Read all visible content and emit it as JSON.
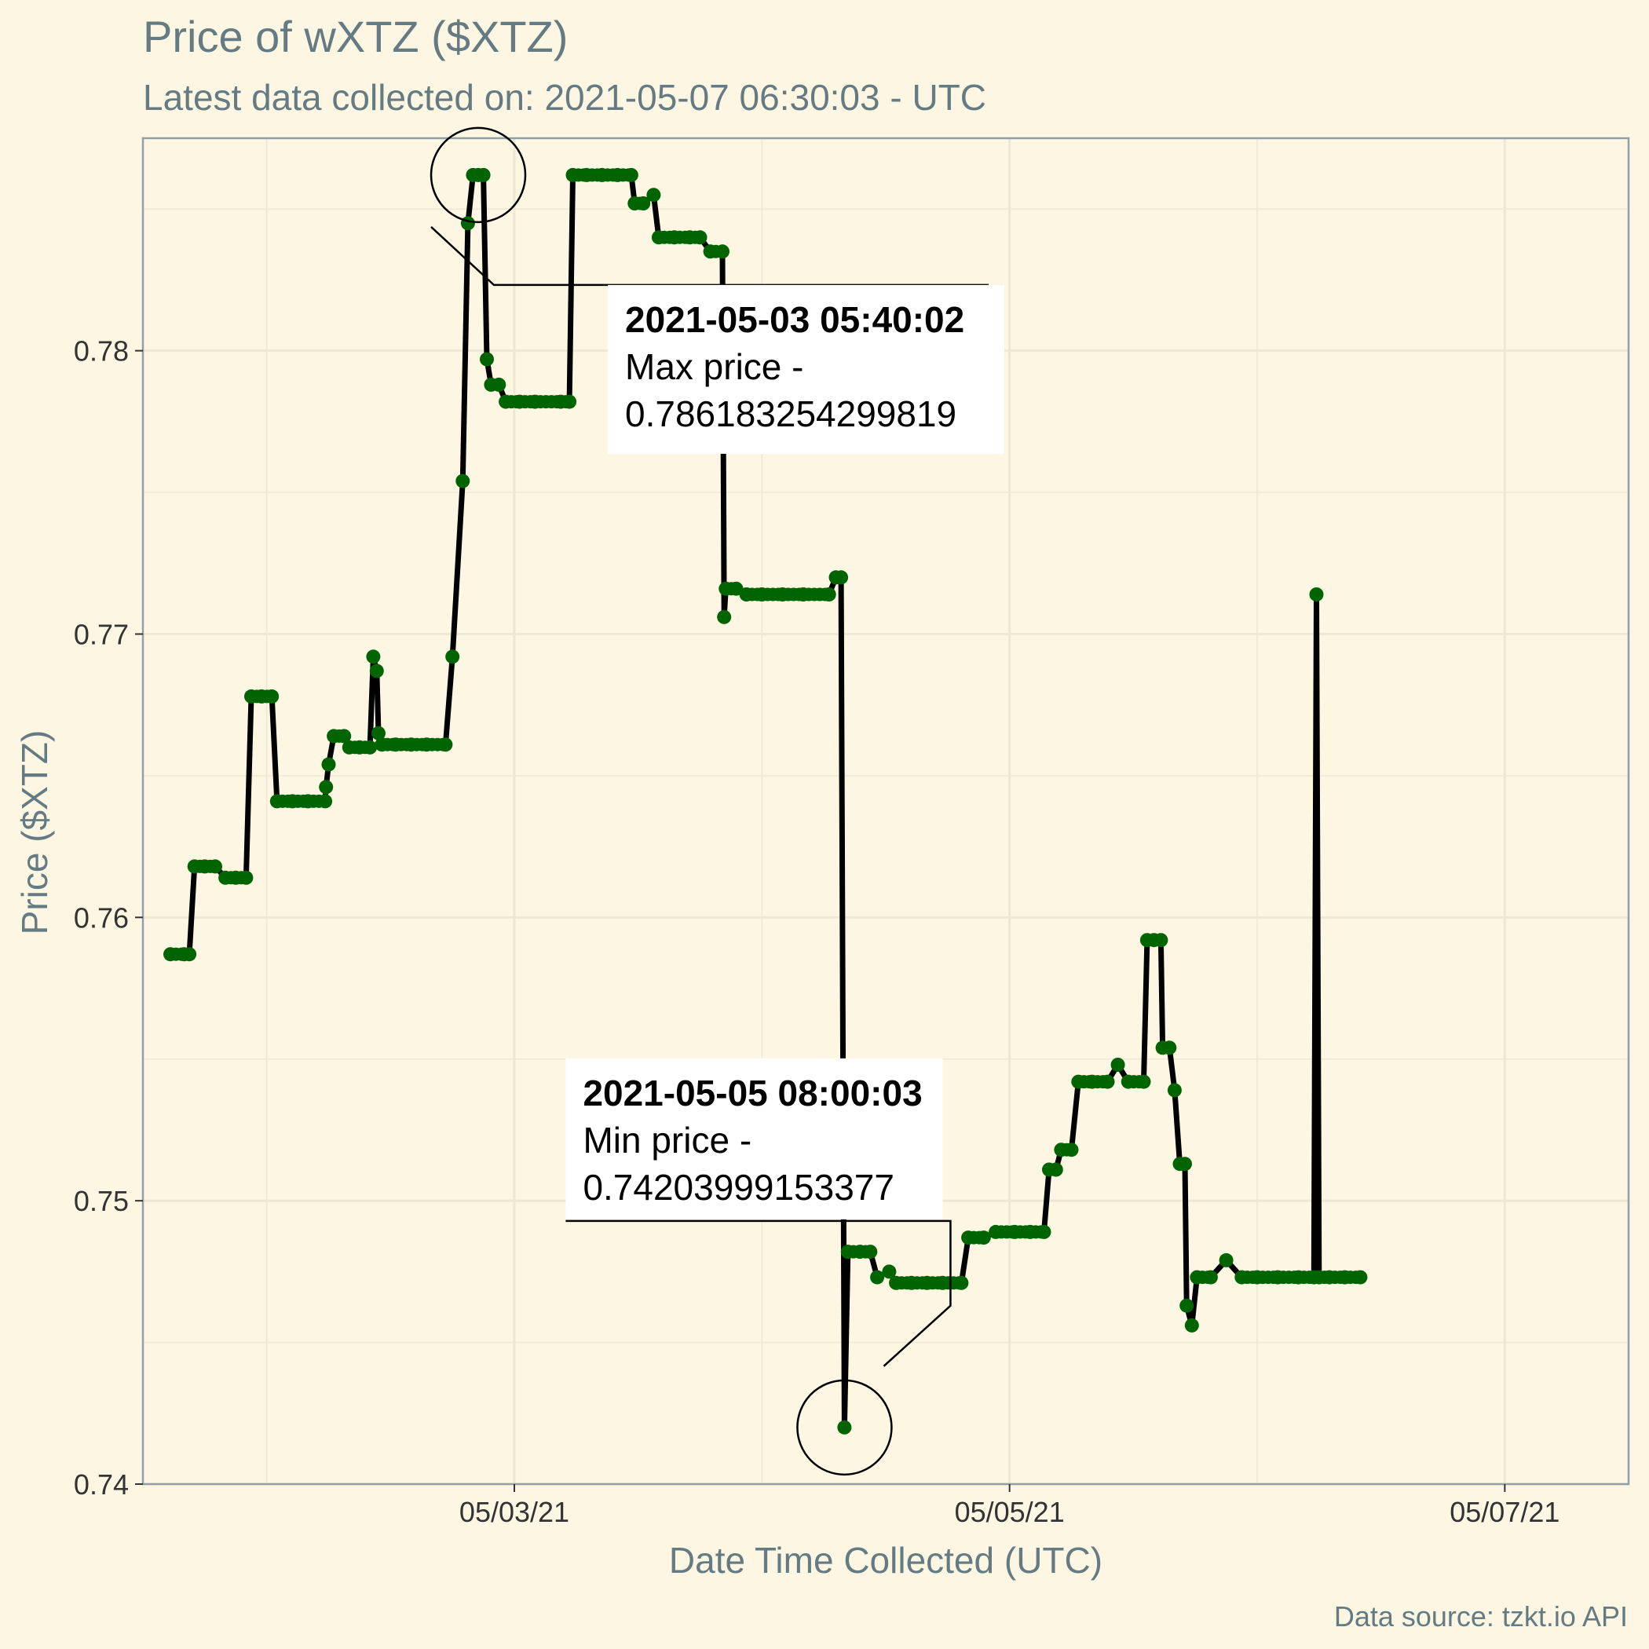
{
  "title": "Price of wXTZ ($XTZ)",
  "subtitle": "Latest data collected on: 2021-05-07 06:30:03  - UTC",
  "caption": "Data source: tzkt.io API",
  "colors": {
    "background": "#fdf6e3",
    "grid": "#ede7d4",
    "line": "#000000",
    "points": "#006400",
    "title_text": "#657b83"
  },
  "chart_data": {
    "type": "line",
    "xlabel": "Date Time Collected (UTC)",
    "ylabel": "Price ($XTZ)",
    "xlim": [
      "2021-05-01 12:00",
      "2021-05-07 12:00"
    ],
    "ylim": [
      0.74,
      0.7875
    ],
    "x_ticks": [
      {
        "value": "2021-05-03 00:00",
        "label": "05/03/21"
      },
      {
        "value": "2021-05-05 00:00",
        "label": "05/05/21"
      },
      {
        "value": "2021-05-07 00:00",
        "label": "05/07/21"
      }
    ],
    "y_ticks": [
      {
        "value": 0.74,
        "label": "0.74"
      },
      {
        "value": 0.75,
        "label": "0.75"
      },
      {
        "value": 0.76,
        "label": "0.76"
      },
      {
        "value": 0.77,
        "label": "0.77"
      },
      {
        "value": 0.78,
        "label": "0.78"
      }
    ],
    "grid": true,
    "legend": "none",
    "series": [
      {
        "points": [
          [
            "2021-05-01 14:40",
            0.7587
          ],
          [
            "2021-05-01 16:00",
            0.7587
          ],
          [
            "2021-05-01 16:30",
            0.7587
          ],
          [
            "2021-05-01 17:00",
            0.7618
          ],
          [
            "2021-05-01 18:00",
            0.7618
          ],
          [
            "2021-05-01 19:00",
            0.7618
          ],
          [
            "2021-05-01 20:00",
            0.7614
          ],
          [
            "2021-05-01 21:00",
            0.7614
          ],
          [
            "2021-05-01 22:00",
            0.7614
          ],
          [
            "2021-05-01 22:30",
            0.7678
          ],
          [
            "2021-05-01 23:30",
            0.7678
          ],
          [
            "2021-05-02 00:30",
            0.7678
          ],
          [
            "2021-05-02 01:00",
            0.7641
          ],
          [
            "2021-05-02 02:30",
            0.7641
          ],
          [
            "2021-05-02 04:00",
            0.7641
          ],
          [
            "2021-05-02 05:40",
            0.7641
          ],
          [
            "2021-05-02 05:45",
            0.7646
          ],
          [
            "2021-05-02 06:00",
            0.7654
          ],
          [
            "2021-05-02 06:30",
            0.7664
          ],
          [
            "2021-05-02 07:30",
            0.7664
          ],
          [
            "2021-05-02 08:00",
            0.766
          ],
          [
            "2021-05-02 09:00",
            0.766
          ],
          [
            "2021-05-02 10:00",
            0.766
          ],
          [
            "2021-05-02 10:20",
            0.7692
          ],
          [
            "2021-05-02 10:40",
            0.7687
          ],
          [
            "2021-05-02 10:50",
            0.7665
          ],
          [
            "2021-05-02 11:10",
            0.7661
          ],
          [
            "2021-05-02 12:30",
            0.7661
          ],
          [
            "2021-05-02 14:00",
            0.7661
          ],
          [
            "2021-05-02 15:30",
            0.7661
          ],
          [
            "2021-05-02 17:20",
            0.7661
          ],
          [
            "2021-05-02 18:00",
            0.7692
          ],
          [
            "2021-05-02 19:00",
            0.7754
          ],
          [
            "2021-05-02 19:30",
            0.7845
          ],
          [
            "2021-05-02 20:00",
            0.7862
          ],
          [
            "2021-05-02 20:30",
            0.7862
          ],
          [
            "2021-05-02 21:00",
            0.7862
          ],
          [
            "2021-05-02 21:20",
            0.7797
          ],
          [
            "2021-05-02 21:45",
            0.7788
          ],
          [
            "2021-05-02 22:30",
            0.7788
          ],
          [
            "2021-05-02 23:10",
            0.7782
          ],
          [
            "2021-05-03 00:30",
            0.7782
          ],
          [
            "2021-05-03 02:00",
            0.7782
          ],
          [
            "2021-05-03 04:30",
            0.7782
          ],
          [
            "2021-05-03 05:20",
            0.7782
          ],
          [
            "2021-05-03 05:40",
            0.7862
          ],
          [
            "2021-05-03 07:00",
            0.7862
          ],
          [
            "2021-05-03 08:30",
            0.7862
          ],
          [
            "2021-05-03 10:00",
            0.7862
          ],
          [
            "2021-05-03 11:20",
            0.7862
          ],
          [
            "2021-05-03 11:40",
            0.7852
          ],
          [
            "2021-05-03 12:30",
            0.7852
          ],
          [
            "2021-05-03 13:30",
            0.7855
          ],
          [
            "2021-05-03 14:00",
            0.784
          ],
          [
            "2021-05-03 15:30",
            0.784
          ],
          [
            "2021-05-03 17:00",
            0.784
          ],
          [
            "2021-05-03 18:00",
            0.784
          ],
          [
            "2021-05-03 19:00",
            0.7835
          ],
          [
            "2021-05-03 20:10",
            0.7835
          ],
          [
            "2021-05-03 20:20",
            0.7706
          ],
          [
            "2021-05-03 20:30",
            0.7716
          ],
          [
            "2021-05-03 21:30",
            0.7716
          ],
          [
            "2021-05-03 22:30",
            0.7714
          ],
          [
            "2021-05-04 00:00",
            0.7714
          ],
          [
            "2021-05-04 02:00",
            0.7714
          ],
          [
            "2021-05-04 04:00",
            0.7714
          ],
          [
            "2021-05-04 06:30",
            0.7714
          ],
          [
            "2021-05-04 07:10",
            0.772
          ],
          [
            "2021-05-04 07:40",
            0.772
          ],
          [
            "2021-05-04 08:00",
            0.742
          ],
          [
            "2021-05-04 08:20",
            0.7482
          ],
          [
            "2021-05-04 09:30",
            0.7482
          ],
          [
            "2021-05-04 10:30",
            0.7482
          ],
          [
            "2021-05-04 11:10",
            0.7473
          ],
          [
            "2021-05-04 12:20",
            0.7475
          ],
          [
            "2021-05-04 13:00",
            0.7471
          ],
          [
            "2021-05-04 14:30",
            0.7471
          ],
          [
            "2021-05-04 16:00",
            0.7471
          ],
          [
            "2021-05-04 17:30",
            0.7471
          ],
          [
            "2021-05-04 19:20",
            0.7471
          ],
          [
            "2021-05-04 20:00",
            0.7487
          ],
          [
            "2021-05-04 21:30",
            0.7487
          ],
          [
            "2021-05-04 22:40",
            0.7489
          ],
          [
            "2021-05-05 00:30",
            0.7489
          ],
          [
            "2021-05-05 02:00",
            0.7489
          ],
          [
            "2021-05-05 03:20",
            0.7489
          ],
          [
            "2021-05-05 03:50",
            0.7511
          ],
          [
            "2021-05-05 04:30",
            0.7511
          ],
          [
            "2021-05-05 05:00",
            0.7518
          ],
          [
            "2021-05-05 06:00",
            0.7518
          ],
          [
            "2021-05-05 06:40",
            0.7542
          ],
          [
            "2021-05-05 08:00",
            0.7542
          ],
          [
            "2021-05-05 09:30",
            0.7542
          ],
          [
            "2021-05-05 10:30",
            0.7548
          ],
          [
            "2021-05-05 11:30",
            0.7542
          ],
          [
            "2021-05-05 13:00",
            0.7542
          ],
          [
            "2021-05-05 13:20",
            0.7592
          ],
          [
            "2021-05-05 14:00",
            0.7592
          ],
          [
            "2021-05-05 14:40",
            0.7592
          ],
          [
            "2021-05-05 14:50",
            0.7554
          ],
          [
            "2021-05-05 15:30",
            0.7554
          ],
          [
            "2021-05-05 16:00",
            0.7539
          ],
          [
            "2021-05-05 16:30",
            0.7513
          ],
          [
            "2021-05-05 17:00",
            0.7513
          ],
          [
            "2021-05-05 17:10",
            0.7463
          ],
          [
            "2021-05-05 17:40",
            0.7456
          ],
          [
            "2021-05-05 18:10",
            0.7473
          ],
          [
            "2021-05-05 19:30",
            0.7473
          ],
          [
            "2021-05-05 21:00",
            0.7479
          ],
          [
            "2021-05-05 22:30",
            0.7473
          ],
          [
            "2021-05-06 00:00",
            0.7473
          ],
          [
            "2021-05-06 02:00",
            0.7473
          ],
          [
            "2021-05-06 04:00",
            0.7473
          ],
          [
            "2021-05-06 05:30",
            0.7473
          ],
          [
            "2021-05-06 05:45",
            0.7714
          ],
          [
            "2021-05-06 06:00",
            0.7473
          ],
          [
            "2021-05-06 07:00",
            0.7473
          ],
          [
            "2021-05-06 08:30",
            0.7473
          ],
          [
            "2021-05-06 10:00",
            0.7473
          ]
        ]
      }
    ],
    "annotations": [
      {
        "date": "2021-05-03 05:40:02",
        "label": "Max price -",
        "value": "0.786183254299819",
        "x": "2021-05-02 20:30",
        "y": 0.7862
      },
      {
        "date": "2021-05-05 08:00:03",
        "label": "Min price -",
        "value": "0.74203999153377",
        "x": "2021-05-04 08:00",
        "y": 0.742
      }
    ]
  }
}
